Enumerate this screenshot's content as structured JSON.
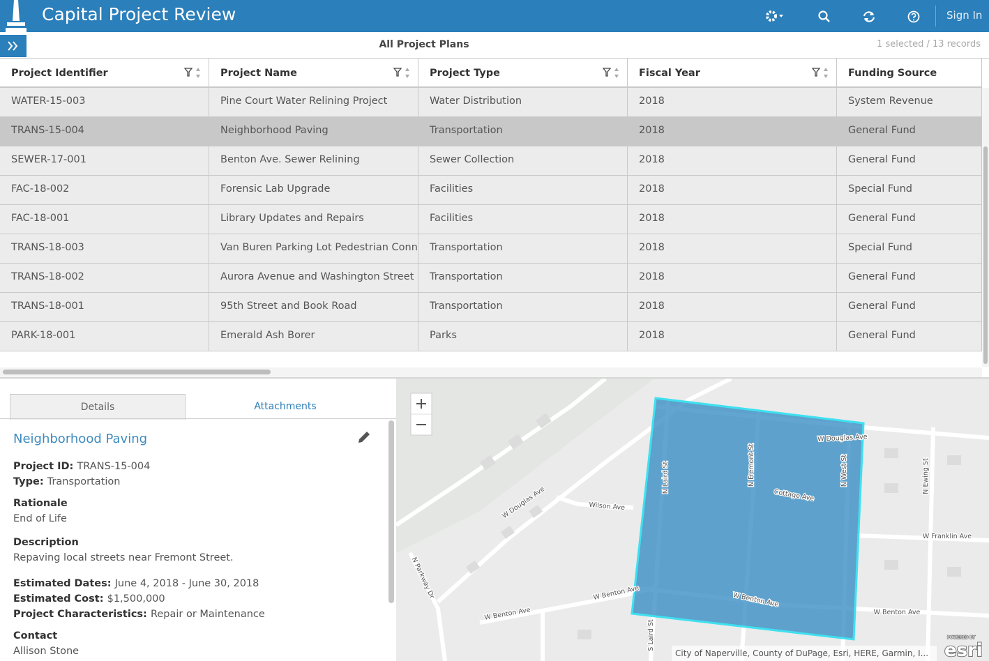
{
  "header": {
    "title": "Capital Project Review",
    "sign_in": "Sign In"
  },
  "toolbar": {
    "title": "All Project Plans",
    "status": "1 selected / 13 records"
  },
  "table": {
    "columns": [
      "Project Identifier",
      "Project Name",
      "Project Type",
      "Fiscal Year",
      "Funding Source"
    ],
    "rows": [
      [
        "WATER-15-003",
        "Pine Court Water Relining Project",
        "Water Distribution",
        "2018",
        "System Revenue"
      ],
      [
        "TRANS-15-004",
        "Neighborhood Paving",
        "Transportation",
        "2018",
        "General Fund"
      ],
      [
        "SEWER-17-001",
        "Benton Ave. Sewer Relining",
        "Sewer Collection",
        "2018",
        "General Fund"
      ],
      [
        "FAC-18-002",
        "Forensic Lab Upgrade",
        "Facilities",
        "2018",
        "Special Fund"
      ],
      [
        "FAC-18-001",
        "Library Updates and Repairs",
        "Facilities",
        "2018",
        "General Fund"
      ],
      [
        "TRANS-18-003",
        "Van Buren Parking Lot Pedestrian Conne",
        "Transportation",
        "2018",
        "Special Fund"
      ],
      [
        "TRANS-18-002",
        "Aurora Avenue and Washington Street",
        "Transportation",
        "2018",
        "General Fund"
      ],
      [
        "TRANS-18-001",
        "95th Street and Book Road",
        "Transportation",
        "2018",
        "General Fund"
      ],
      [
        "PARK-18-001",
        "Emerald Ash Borer",
        "Parks",
        "2018",
        "General Fund"
      ]
    ],
    "selected_row": 1
  },
  "details": {
    "tabs": [
      "Details",
      "Attachments"
    ],
    "title": "Neighborhood Paving",
    "project_id": {
      "label": "Project ID:",
      "value": "TRANS-15-004"
    },
    "type": {
      "label": "Type:",
      "value": "Transportation"
    },
    "rationale": {
      "label": "Rationale",
      "value": "End of Life"
    },
    "description": {
      "label": "Description",
      "value": "Repaving local streets near Fremont Street."
    },
    "dates": {
      "label": "Estimated Dates:",
      "value": "June 4, 2018 - June 30, 2018"
    },
    "cost": {
      "label": "Estimated Cost:",
      "value": "$1,500,000"
    },
    "characteristics": {
      "label": "Project Characteristics:",
      "value": "Repair or Maintenance"
    },
    "contact": {
      "label": "Contact",
      "value": "Allison Stone"
    }
  },
  "map": {
    "labels": [
      "W Douglas Ave",
      "N Laird St",
      "N Fremont St",
      "N West St",
      "Cottage Ave",
      "N Ewing St",
      "W Douglas Ave",
      "Wilson Ave",
      "W Franklin Ave",
      "N Parkway Dr",
      "W Benton Ave",
      "W Benton Ave",
      "W Benton Ave",
      "W Benton Ave",
      "S Laird St"
    ],
    "attribution": "City of Naperville, County of DuPage, Esri, HERE, Garmin, I...",
    "logo_small": "POWERED BY",
    "logo": "esri"
  }
}
